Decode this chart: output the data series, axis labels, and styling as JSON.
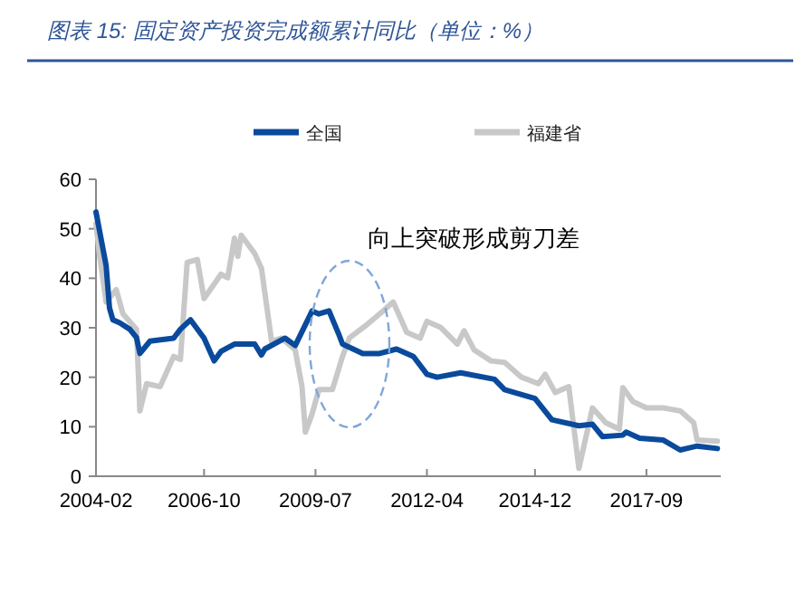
{
  "chart_data": {
    "type": "line",
    "title": "图表 15: 固定资产投资完成额累计同比（单位：%）",
    "annotations": [
      "向上突破形成剪刀差"
    ],
    "xlim": [
      "2004-02",
      "2019-07"
    ],
    "xticks": [
      {
        "value": "2004-02",
        "label": "2004-02"
      },
      {
        "value": "2006-10",
        "label": "2006-10"
      },
      {
        "value": "2009-07",
        "label": "2009-07"
      },
      {
        "value": "2012-04",
        "label": "2012-04"
      },
      {
        "value": "2014-12",
        "label": "2014-12"
      },
      {
        "value": "2017-09",
        "label": "2017-09"
      }
    ],
    "ylim": [
      0,
      60
    ],
    "yticks": [
      0,
      10,
      20,
      30,
      40,
      50,
      60
    ],
    "legend": "top",
    "grid": false,
    "marker": "none",
    "line_style": "solid",
    "series": [
      {
        "name": "全国",
        "color": "#0a4a9c",
        "x": [
          "2004-02",
          "2004-05",
          "2004-06",
          "2004-07",
          "2004-09",
          "2004-12",
          "2005-02",
          "2005-03",
          "2005-06",
          "2006-01",
          "2006-03",
          "2006-06",
          "2006-10",
          "2007-01",
          "2007-03",
          "2007-07",
          "2008-01",
          "2008-03",
          "2008-04",
          "2008-10",
          "2009-01",
          "2009-06",
          "2009-08",
          "2009-11",
          "2010-02",
          "2010-03",
          "2010-09",
          "2011-02",
          "2011-07",
          "2011-12",
          "2012-04",
          "2012-07",
          "2013-02",
          "2013-12",
          "2014-03",
          "2014-12",
          "2015-05",
          "2016-01",
          "2016-05",
          "2016-08",
          "2017-02",
          "2017-03",
          "2017-07",
          "2018-02",
          "2018-07",
          "2018-12",
          "2019-06"
        ],
        "values": [
          53.4,
          42.6,
          34,
          31.6,
          31,
          29.7,
          28,
          24.8,
          27.3,
          27.9,
          29.7,
          31.6,
          27.9,
          23.3,
          25.2,
          26.7,
          26.7,
          24.5,
          25.7,
          27.9,
          26.4,
          33.4,
          32.8,
          33.4,
          28.5,
          26.7,
          24.8,
          24.8,
          25.7,
          24.2,
          20.6,
          20,
          20.9,
          19.6,
          17.5,
          15.7,
          11.4,
          10.2,
          10.5,
          8,
          8.3,
          8.9,
          7.7,
          7.3,
          5.3,
          6.1,
          5.6
        ]
      },
      {
        "name": "福建省",
        "color": "#c8c8c8",
        "x": [
          "2004-02",
          "2004-03",
          "2004-05",
          "2004-08",
          "2004-10",
          "2005-02",
          "2005-03",
          "2005-05",
          "2005-09",
          "2006-01",
          "2006-03",
          "2006-05",
          "2006-08",
          "2006-10",
          "2007-03",
          "2007-05",
          "2007-07",
          "2007-08",
          "2007-09",
          "2008-01",
          "2008-03",
          "2008-06",
          "2008-09",
          "2009-01",
          "2009-03",
          "2009-04",
          "2009-06",
          "2009-08",
          "2009-12",
          "2010-03",
          "2010-05",
          "2010-10",
          "2011-03",
          "2011-06",
          "2011-08",
          "2011-10",
          "2012-02",
          "2012-04",
          "2012-08",
          "2013-01",
          "2013-03",
          "2013-06",
          "2013-11",
          "2014-03",
          "2014-08",
          "2015-01",
          "2015-03",
          "2015-06",
          "2015-10",
          "2016-01",
          "2016-05",
          "2016-09",
          "2017-01",
          "2017-02",
          "2017-05",
          "2017-09",
          "2018-02",
          "2018-07",
          "2018-11",
          "2018-12",
          "2019-06"
        ],
        "values": [
          51,
          45,
          35.2,
          37.7,
          32.8,
          29.7,
          13.2,
          18.7,
          18.1,
          24.2,
          23.6,
          43.2,
          43.8,
          35.9,
          40.8,
          40.1,
          48.1,
          44.4,
          48.7,
          45,
          42,
          27.3,
          27.9,
          25.5,
          18.1,
          8.9,
          12.6,
          17.5,
          17.5,
          24.2,
          27.9,
          30.5,
          33.4,
          35.2,
          32.2,
          29.1,
          27.9,
          31.3,
          30.1,
          26.7,
          29.4,
          25.5,
          23.3,
          23,
          20,
          18.7,
          20.6,
          16.9,
          18.1,
          1.6,
          13.8,
          10.8,
          9.5,
          17.9,
          15.1,
          13.8,
          13.8,
          13.2,
          10.8,
          7.3,
          7.1
        ]
      }
    ]
  }
}
